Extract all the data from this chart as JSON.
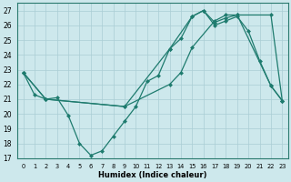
{
  "xlabel": "Humidex (Indice chaleur)",
  "bg_color": "#cde8ec",
  "grid_color": "#aacdd4",
  "line_color": "#1e7b6e",
  "xlim": [
    -0.5,
    23.5
  ],
  "ylim": [
    17,
    27.5
  ],
  "yticks": [
    17,
    18,
    19,
    20,
    21,
    22,
    23,
    24,
    25,
    26,
    27
  ],
  "xticks": [
    0,
    1,
    2,
    3,
    4,
    5,
    6,
    7,
    8,
    9,
    10,
    11,
    12,
    13,
    14,
    15,
    16,
    17,
    18,
    19,
    20,
    21,
    22,
    23
  ],
  "line1_x": [
    0,
    1,
    2,
    3,
    4,
    5,
    6,
    7,
    8,
    9,
    10,
    11,
    12,
    13,
    14,
    15,
    16,
    17,
    18,
    19,
    20,
    21,
    22,
    23
  ],
  "line1_y": [
    22.8,
    21.3,
    21.0,
    21.1,
    19.9,
    18.0,
    17.2,
    17.5,
    18.5,
    19.5,
    20.5,
    22.2,
    22.6,
    24.4,
    25.1,
    26.6,
    27.0,
    26.0,
    26.3,
    26.6,
    25.6,
    23.6,
    21.9,
    20.9
  ],
  "line2_x": [
    0,
    2,
    9,
    13,
    15,
    16,
    17,
    18,
    19,
    22,
    23
  ],
  "line2_y": [
    22.8,
    21.0,
    20.5,
    24.4,
    26.6,
    27.0,
    26.2,
    26.5,
    26.7,
    21.9,
    20.9
  ],
  "line3_x": [
    0,
    2,
    9,
    13,
    14,
    15,
    17,
    18,
    19,
    22,
    23
  ],
  "line3_y": [
    22.8,
    21.0,
    20.5,
    22.0,
    22.8,
    24.5,
    26.3,
    26.7,
    26.7,
    26.7,
    20.9
  ]
}
